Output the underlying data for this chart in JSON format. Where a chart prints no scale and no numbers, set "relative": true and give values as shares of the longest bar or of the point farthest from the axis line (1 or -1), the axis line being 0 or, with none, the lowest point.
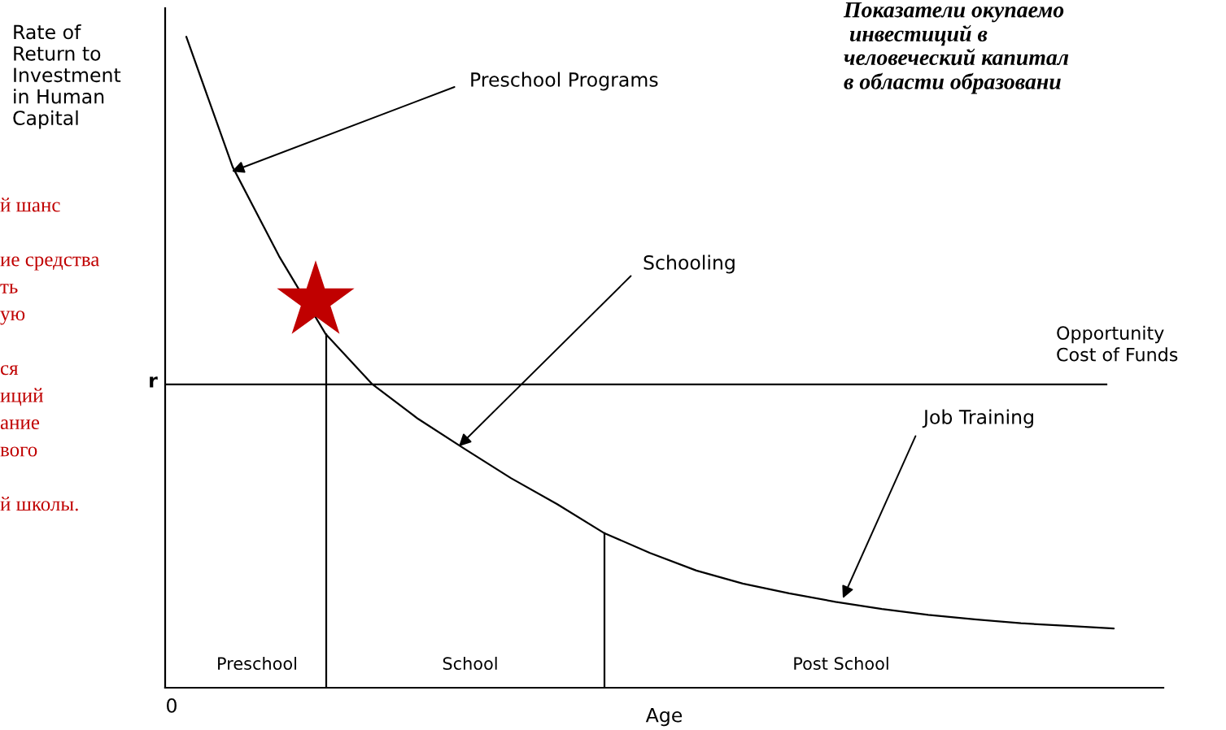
{
  "chart_data": {
    "type": "line",
    "relative": true,
    "title": "Показатели окупаемо\n инвестиций в\nчеловеческий капитал\nв области образовани",
    "xlabel": "Age",
    "ylabel": "Rate of\nReturn to\nInvestment\nin Human\nCapital",
    "line_style": "solid",
    "categories": [
      null,
      null,
      null,
      null,
      null,
      null,
      null,
      null,
      null,
      null,
      null,
      null,
      null,
      null,
      null,
      null,
      null,
      null,
      null,
      null,
      null
    ],
    "series": [
      {
        "color": "#000000",
        "values": [
          1,
          0.8,
          0.663,
          0.544,
          0.467,
          0.413,
          0.367,
          0.322,
          0.282,
          0.238,
          0.207,
          0.18,
          0.16,
          0.145,
          0.132,
          0.121,
          0.112,
          0.105,
          0.099,
          0.095,
          0.091
        ]
      }
    ],
    "ref_lines": [
      {
        "axis": "y",
        "value": 0.466,
        "label": "Opportunity\nCost of Funds",
        "color": "#000000",
        "line_style": "solid"
      }
    ],
    "annotations": [
      "Preschool Programs",
      "Schooling",
      "Job Training",
      "r",
      "0",
      "й шанс\n\nие средства\nть\nую\n\nся\nиций\nание\nвого\n\nй школы.",
      "Preschool",
      "School",
      "Post School"
    ]
  }
}
